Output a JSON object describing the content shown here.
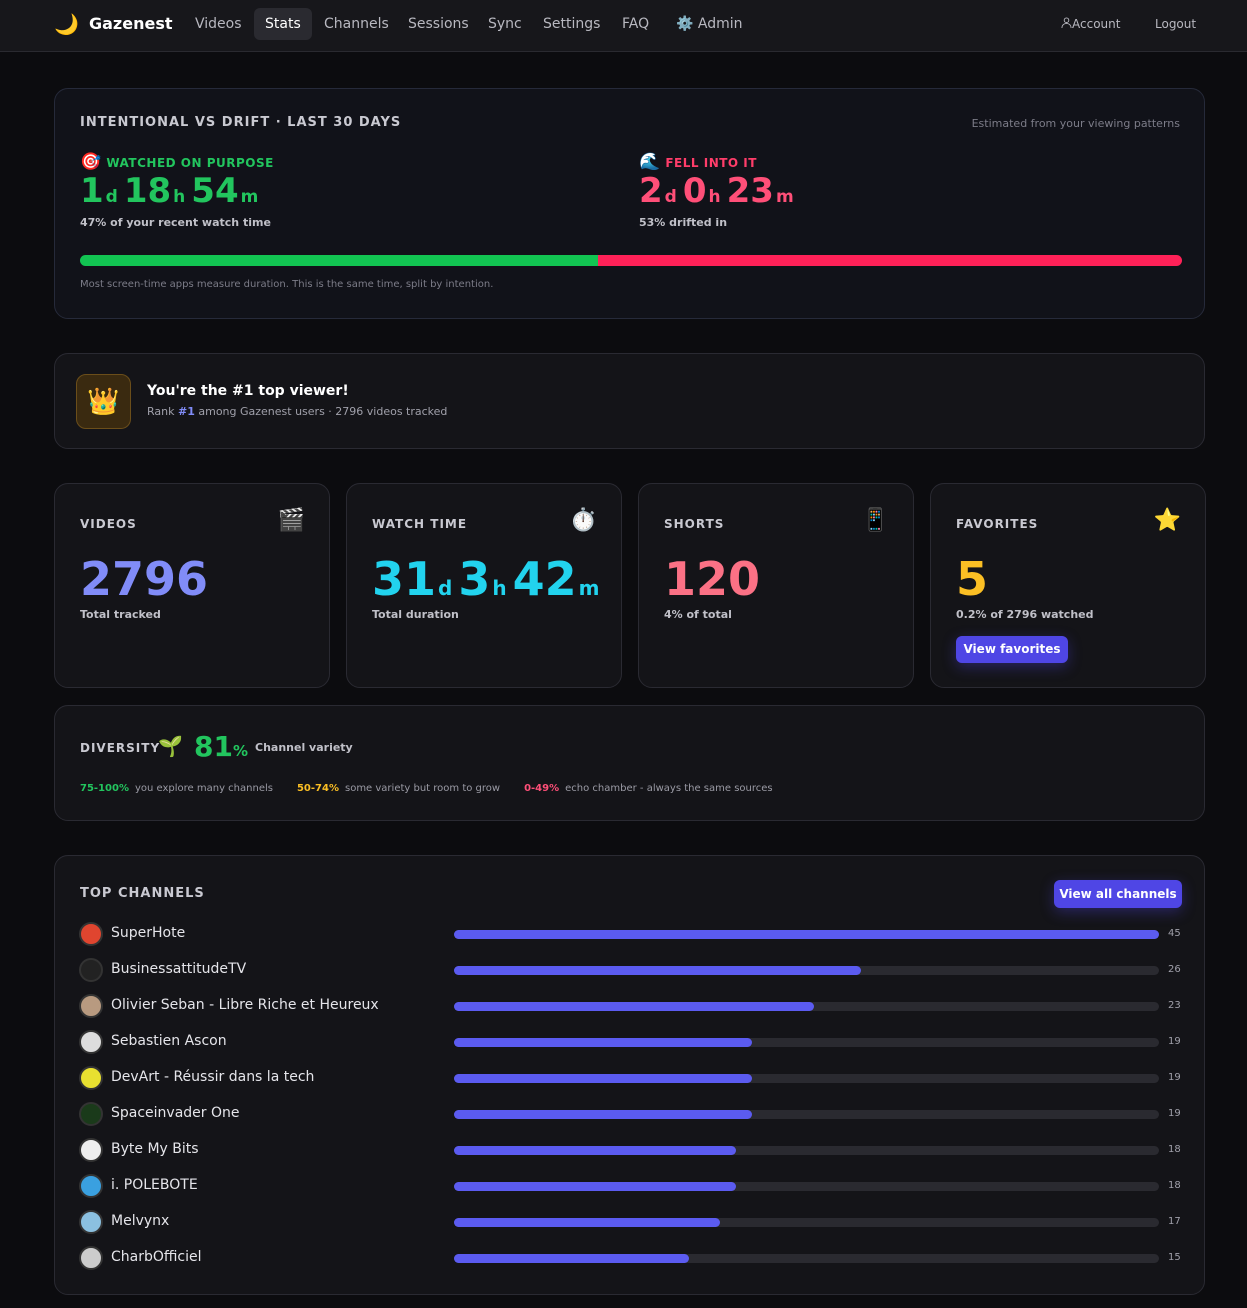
{
  "nav": {
    "brand_icon": "🌙",
    "brand": "Gazenest",
    "links": [
      "Videos",
      "Stats",
      "Channels",
      "Sessions",
      "Sync",
      "Settings",
      "FAQ"
    ],
    "admin_icon": "⚙️",
    "admin": "Admin",
    "account": "Account",
    "logout": "Logout"
  },
  "intent": {
    "title": "INTENTIONAL VS DRIFT · LAST 30 DAYS",
    "note": "Estimated from your viewing patterns",
    "purpose": {
      "icon": "🎯",
      "label": "WATCHED ON PURPOSE",
      "time": [
        {
          "value": 1,
          "unit": "d"
        },
        {
          "value": 18,
          "unit": "h"
        },
        {
          "value": 54,
          "unit": "m"
        }
      ],
      "share": 47,
      "caption": "47% of your recent watch time"
    },
    "drift": {
      "icon": "🌊",
      "label": "FELL INTO IT",
      "time": [
        {
          "value": 2,
          "unit": "d"
        },
        {
          "value": 0,
          "unit": "h"
        },
        {
          "value": 23,
          "unit": "m"
        }
      ],
      "share": 53,
      "caption": "53% drifted in"
    },
    "footnote": "Most screen-time apps measure duration. This is the same time, split by intention."
  },
  "rank": {
    "icon": "👑",
    "title": "You're the #1 top viewer!",
    "prefix": "Rank",
    "rank": "#1",
    "suffix": "among Gazenest users · 2796 videos tracked"
  },
  "stats": [
    {
      "label": "VIDEOS",
      "icon": "🎬",
      "value": [
        {
          "value": 2796
        }
      ],
      "caption": "Total tracked"
    },
    {
      "label": "WATCH TIME",
      "icon": "⏱️",
      "value": [
        {
          "value": 31,
          "unit": "d"
        },
        {
          "value": 3,
          "unit": "h"
        },
        {
          "value": 42,
          "unit": "m"
        }
      ],
      "caption": "Total duration"
    },
    {
      "label": "SHORTS",
      "icon": "📱",
      "value": [
        {
          "value": 120
        }
      ],
      "caption": "4% of total"
    },
    {
      "label": "FAVORITES",
      "icon": "⭐",
      "value": [
        {
          "value": 5
        }
      ],
      "caption": "0.2% of 2796 watched",
      "button": "View favorites"
    }
  ],
  "diversity": {
    "label": "DIVERSITY",
    "icon": "🌱",
    "value": 81,
    "unit": "%",
    "caption": "Channel variety",
    "legend": [
      {
        "range": "75-100%",
        "text": "you explore many channels"
      },
      {
        "range": "50-74%",
        "text": "some variety but room to grow"
      },
      {
        "range": "0-49%",
        "text": "echo chamber - always the same sources"
      }
    ]
  },
  "channels": {
    "title": "TOP CHANNELS",
    "button": "View all channels",
    "items": [
      {
        "name": "SuperHote",
        "count": 45
      },
      {
        "name": "BusinessattitudeTV",
        "count": 26
      },
      {
        "name": "Olivier Seban - Libre Riche et Heureux",
        "count": 23
      },
      {
        "name": "Sebastien Ascon",
        "count": 19
      },
      {
        "name": "DevArt - Réussir dans la tech",
        "count": 19
      },
      {
        "name": "Spaceinvader One",
        "count": 19
      },
      {
        "name": "Byte My Bits",
        "count": 18
      },
      {
        "name": "i. POLEBOTE",
        "count": 18
      },
      {
        "name": "Melvynx",
        "count": 17
      },
      {
        "name": "CharbOfficiel",
        "count": 15
      }
    ]
  }
}
